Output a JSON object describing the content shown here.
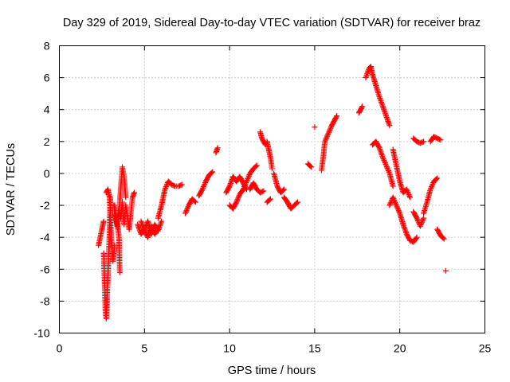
{
  "chart_data": {
    "type": "scatter",
    "title": "Day 329 of 2019, Sidereal Day-to-day VTEC variation (SDTVAR) for receiver braz",
    "xlabel": "GPS time / hours",
    "ylabel": "SDTVAR / TECUs",
    "xlim": [
      0,
      25
    ],
    "ylim": [
      -10,
      8
    ],
    "xticks": [
      0,
      5,
      10,
      15,
      20,
      25
    ],
    "yticks": [
      -10,
      -8,
      -6,
      -4,
      -2,
      0,
      2,
      4,
      6,
      8
    ],
    "grid": true,
    "marker": "plus",
    "color": "#ff0000",
    "segments": [
      {
        "x": [
          2.3,
          2.5,
          2.6
        ],
        "y": [
          -4.5,
          -3.5,
          -3.0
        ]
      },
      {
        "x": [
          2.6,
          2.65,
          2.7,
          2.75,
          2.8,
          2.85,
          2.9,
          2.95,
          3.0
        ],
        "y": [
          -5.0,
          -6.5,
          -8.5,
          -9.1,
          -8.0,
          -6.5,
          -5.0,
          -3.5,
          -1.5
        ]
      },
      {
        "x": [
          2.75,
          2.85,
          2.95,
          3.05,
          3.15,
          3.25
        ],
        "y": [
          -1.2,
          -1.0,
          -1.5,
          -4.0,
          -5.5,
          -4.5
        ]
      },
      {
        "x": [
          3.2,
          3.3,
          3.4,
          3.5,
          3.6,
          3.7,
          3.8,
          3.9
        ],
        "y": [
          -2.0,
          -2.8,
          -3.3,
          -2.5,
          -1.0,
          0.4,
          -0.2,
          -1.5
        ]
      },
      {
        "x": [
          3.3,
          3.4,
          3.5,
          3.6,
          3.7,
          3.8,
          3.9,
          4.0,
          4.1,
          4.2,
          4.3,
          4.4
        ],
        "y": [
          -2.5,
          -3.0,
          -2.2,
          -2.8,
          -1.8,
          -3.2,
          -2.0,
          -2.7,
          -3.5,
          -2.5,
          -1.5,
          -1.2
        ]
      },
      {
        "x": [
          4.6,
          4.8,
          5.0,
          5.2,
          5.4,
          5.6,
          5.8,
          6.0
        ],
        "y": [
          -3.2,
          -3.8,
          -3.5,
          -3.0,
          -3.8,
          -3.2,
          -3.6,
          -3.0
        ]
      },
      {
        "x": [
          4.8,
          5.0,
          5.2,
          5.4,
          5.6,
          5.8
        ],
        "y": [
          -3.0,
          -3.6,
          -4.0,
          -3.3,
          -3.8,
          -3.4
        ]
      },
      {
        "x": [
          5.8,
          6.0,
          6.2,
          6.4,
          6.6,
          6.8,
          7.0,
          7.2
        ],
        "y": [
          -2.8,
          -2.0,
          -1.0,
          -0.5,
          -0.7,
          -0.8,
          -0.8,
          -0.7
        ]
      },
      {
        "x": [
          7.4,
          7.6,
          7.8,
          8.0
        ],
        "y": [
          -2.5,
          -2.0,
          -1.6,
          -1.8
        ]
      },
      {
        "x": [
          8.2,
          8.4,
          8.6,
          8.8,
          9.0
        ],
        "y": [
          -1.4,
          -1.0,
          -0.5,
          -0.1,
          0.1
        ]
      },
      {
        "x": [
          9.2,
          9.3
        ],
        "y": [
          1.3,
          1.6
        ]
      },
      {
        "x": [
          9.8,
          10.0,
          10.2,
          10.4,
          10.6,
          10.8,
          11.0
        ],
        "y": [
          -1.2,
          -0.8,
          -0.2,
          -0.5,
          -0.2,
          -0.6,
          -1.0
        ]
      },
      {
        "x": [
          10.0,
          10.2,
          10.4,
          10.6,
          10.8,
          11.0,
          11.2,
          11.4,
          11.6
        ],
        "y": [
          -2.0,
          -2.2,
          -1.8,
          -1.3,
          -1.0,
          -0.5,
          0.0,
          0.3,
          0.5
        ]
      },
      {
        "x": [
          11.2,
          11.4,
          11.6,
          11.8,
          12.0
        ],
        "y": [
          -1.0,
          -0.6,
          -1.0,
          -1.2,
          -1.1
        ]
      },
      {
        "x": [
          11.8,
          11.9,
          12.0,
          12.1
        ],
        "y": [
          2.6,
          2.2,
          2.0,
          1.8
        ]
      },
      {
        "x": [
          12.2,
          12.3,
          12.4,
          12.5
        ],
        "y": [
          2.0,
          1.5,
          1.0,
          0.3
        ]
      },
      {
        "x": [
          12.2,
          12.4
        ],
        "y": [
          -1.8,
          -1.6
        ]
      },
      {
        "x": [
          12.6,
          12.8,
          13.0,
          13.2
        ],
        "y": [
          0.0,
          -0.8,
          -1.2,
          -1.0
        ]
      },
      {
        "x": [
          13.2,
          13.4,
          13.6,
          13.8,
          14.0
        ],
        "y": [
          -1.5,
          -1.8,
          -2.2,
          -2.0,
          -1.8
        ]
      },
      {
        "x": [
          14.6,
          14.8
        ],
        "y": [
          0.6,
          0.4
        ]
      },
      {
        "x": [
          15.0
        ],
        "y": [
          2.9
        ]
      },
      {
        "x": [
          15.4,
          15.5,
          15.6,
          15.8,
          16.0,
          16.2,
          16.3
        ],
        "y": [
          0.2,
          1.0,
          2.0,
          2.5,
          3.0,
          3.4,
          3.6
        ]
      },
      {
        "x": [
          17.6,
          17.8
        ],
        "y": [
          3.8,
          4.2
        ]
      },
      {
        "x": [
          18.0,
          18.2,
          18.3,
          18.4,
          18.6,
          18.8,
          19.0,
          19.2,
          19.4
        ],
        "y": [
          6.0,
          6.6,
          6.7,
          6.2,
          5.5,
          4.8,
          4.2,
          3.6,
          3.0
        ]
      },
      {
        "x": [
          18.4,
          18.6,
          18.8,
          19.0,
          19.2,
          19.4,
          19.6
        ],
        "y": [
          1.8,
          2.0,
          1.6,
          1.0,
          0.5,
          0.0,
          -0.8
        ]
      },
      {
        "x": [
          19.4,
          19.6,
          19.8,
          20.0,
          20.2,
          20.4,
          20.6,
          20.8,
          21.0
        ],
        "y": [
          -2.0,
          -1.5,
          -2.0,
          -2.5,
          -3.2,
          -3.8,
          -4.2,
          -4.3,
          -4.0
        ]
      },
      {
        "x": [
          19.6,
          19.8,
          20.0,
          20.2,
          20.4,
          20.6
        ],
        "y": [
          1.5,
          0.5,
          -0.5,
          -1.2,
          -1.0,
          -1.5
        ]
      },
      {
        "x": [
          20.8,
          21.0,
          21.2,
          21.4
        ],
        "y": [
          -2.4,
          -2.8,
          -3.3,
          -2.8
        ]
      },
      {
        "x": [
          21.4,
          21.6,
          21.8,
          22.0,
          22.2
        ],
        "y": [
          -2.5,
          -1.8,
          -1.0,
          -0.5,
          -0.3
        ]
      },
      {
        "x": [
          20.8,
          21.0,
          21.2,
          21.4
        ],
        "y": [
          2.2,
          2.0,
          1.9,
          2.0
        ]
      },
      {
        "x": [
          21.8,
          22.0,
          22.2,
          22.4
        ],
        "y": [
          2.0,
          2.3,
          2.2,
          2.1
        ]
      },
      {
        "x": [
          22.2,
          22.4,
          22.6
        ],
        "y": [
          -3.5,
          -3.9,
          -4.1
        ]
      },
      {
        "x": [
          22.7
        ],
        "y": [
          -6.1
        ]
      },
      {
        "x": [
          3.25,
          3.3,
          3.35,
          3.45,
          3.5,
          3.55
        ],
        "y": [
          -2.0,
          -2.5,
          -3.0,
          -3.5,
          -4.0,
          -6.2
        ]
      }
    ]
  }
}
